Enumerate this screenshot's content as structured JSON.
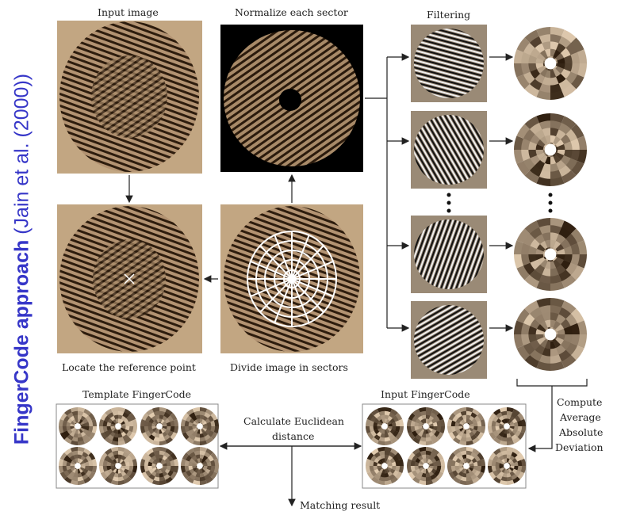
{
  "title": {
    "main": "FingerCode approach",
    "citation": "(Jain et al. (2000))"
  },
  "labels": {
    "input_image": "Input image",
    "normalize": "Normalize each sector",
    "filtering": "Filtering",
    "locate": "Locate the reference point",
    "divide": "Divide image in sectors",
    "template_fc": "Template FingerCode",
    "input_fc": "Input FingerCode",
    "euclid_1": "Calculate Euclidean",
    "euclid_2": "distance",
    "compute_1": "Compute",
    "compute_2": "Average",
    "compute_3": "Absolute",
    "compute_4": "Deviation",
    "matching": "Matching result"
  },
  "colors": {
    "title_blue": "#3636c8",
    "sepia_dark": "#2d1c0d",
    "sepia_light": "#c8ad8c",
    "arrow": "#222222"
  }
}
